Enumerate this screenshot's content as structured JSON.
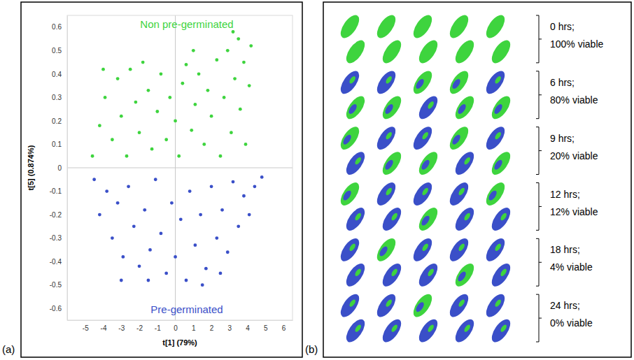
{
  "chart_data": [
    {
      "type": "scatter",
      "panel_label": "(a)",
      "x_label": "t[1] (79%)",
      "y_label": "t[5] (0.874%)",
      "xlim": [
        -6,
        6.5
      ],
      "ylim": [
        -0.65,
        0.65
      ],
      "xticks": [
        -5,
        -4,
        -3,
        -2,
        -1,
        0,
        1,
        2,
        3,
        4,
        5,
        6
      ],
      "yticks": [
        -0.6,
        -0.5,
        -0.4,
        -0.3,
        -0.2,
        -0.1,
        0,
        0.1,
        0.2,
        0.3,
        0.4,
        0.5,
        0.6
      ],
      "grid": false,
      "series": [
        {
          "name": "Non pre-germinated",
          "color": "#3ed43e",
          "marker": "circle",
          "x": [
            -4.6,
            -4.2,
            -3.9,
            -3.5,
            -3.2,
            -3,
            -2.7,
            -2.5,
            -2.2,
            -2,
            -1.8,
            -1.5,
            -1.3,
            -1,
            -0.8,
            -0.5,
            -0.3,
            0,
            0.2,
            0.4,
            0.6,
            0.9,
            1.1,
            1.3,
            1.6,
            1.8,
            2,
            2.3,
            2.5,
            2.7,
            2.9,
            3.1,
            3.3,
            3.5,
            3.6,
            3.8,
            3.9,
            4.1,
            4.2,
            -4,
            3.2,
            1
          ],
          "values": [
            0.05,
            0.18,
            0.3,
            0.12,
            0.38,
            0.22,
            0.05,
            0.42,
            0.28,
            0.15,
            0.45,
            0.33,
            0.08,
            0.24,
            0.4,
            0.12,
            0.3,
            0.2,
            0.05,
            0.36,
            0.44,
            0.16,
            0.27,
            0.4,
            0.1,
            0.33,
            0.22,
            0.46,
            0.05,
            0.3,
            0.5,
            0.15,
            0.38,
            0.55,
            0.25,
            0.45,
            0.1,
            0.35,
            0.52,
            0.42,
            0.58,
            0.5
          ]
        },
        {
          "name": "Pre-germinated",
          "color": "#3a4fc8",
          "marker": "circle",
          "x": [
            -4.5,
            -4.2,
            -3.8,
            -3.5,
            -3.2,
            -2.9,
            -2.6,
            -2.3,
            -2,
            -1.7,
            -1.4,
            -1.1,
            -0.8,
            -0.5,
            -0.2,
            0,
            0.3,
            0.6,
            0.8,
            1.1,
            1.4,
            1.7,
            2,
            2.3,
            2.6,
            2.9,
            3.2,
            3.5,
            3.8,
            4.1,
            4.4,
            4.8,
            -3,
            1.5,
            -1.5,
            2.5
          ],
          "values": [
            -0.05,
            -0.2,
            -0.1,
            -0.3,
            -0.15,
            -0.38,
            -0.08,
            -0.25,
            -0.42,
            -0.18,
            -0.35,
            -0.05,
            -0.28,
            -0.45,
            -0.15,
            -0.38,
            -0.22,
            -0.48,
            -0.1,
            -0.33,
            -0.2,
            -0.43,
            -0.08,
            -0.3,
            -0.18,
            -0.36,
            -0.06,
            -0.25,
            -0.12,
            -0.2,
            -0.08,
            -0.04,
            -0.48,
            -0.5,
            -0.48,
            -0.45
          ]
        }
      ]
    },
    {
      "type": "image",
      "panel_label": "(b)",
      "rows": [
        {
          "time": "0 hrs;",
          "viable": "100% viable"
        },
        {
          "time": "6 hrs;",
          "viable": "80% viable"
        },
        {
          "time": "9 hrs;",
          "viable": "20% viable"
        },
        {
          "time": "12 hrs;",
          "viable": "12% viable"
        },
        {
          "time": "18 hrs;",
          "viable": "4% viable"
        },
        {
          "time": "24 hrs;",
          "viable": "0% viable"
        }
      ]
    }
  ]
}
